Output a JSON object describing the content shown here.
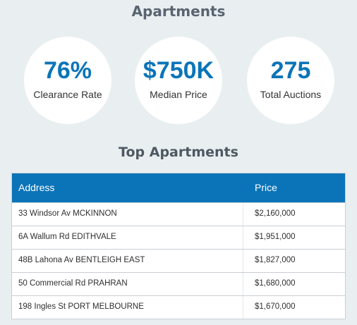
{
  "page": {
    "title": "Apartments"
  },
  "stats": [
    {
      "value": "76%",
      "label": "Clearance Rate"
    },
    {
      "value": "$750K",
      "label": "Median Price"
    },
    {
      "value": "275",
      "label": "Total Auctions"
    }
  ],
  "top_section": {
    "title": "Top Apartments",
    "columns": {
      "address": "Address",
      "price": "Price"
    },
    "rows": [
      {
        "address": "33 Windsor Av MCKINNON",
        "price": "$2,160,000"
      },
      {
        "address": "6A Wallum Rd EDITHVALE",
        "price": "$1,951,000"
      },
      {
        "address": "48B Lahona Av BENTLEIGH EAST",
        "price": "$1,827,000"
      },
      {
        "address": "50 Commercial Rd PRAHRAN",
        "price": "$1,680,000"
      },
      {
        "address": "198 Ingles St PORT MELBOURNE",
        "price": "$1,670,000"
      }
    ]
  },
  "colors": {
    "accent": "#0b74b8",
    "background": "#e9eff1"
  }
}
